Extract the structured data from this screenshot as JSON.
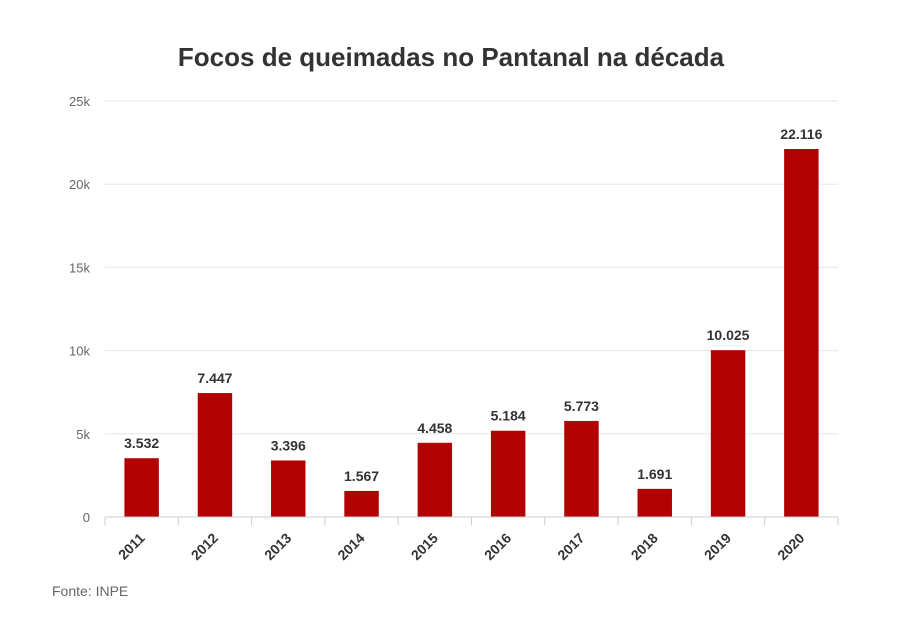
{
  "chart_data": {
    "type": "bar",
    "title": "Focos de queimadas no Pantanal na década",
    "categories": [
      "2011",
      "2012",
      "2013",
      "2014",
      "2015",
      "2016",
      "2017",
      "2018",
      "2019",
      "2020"
    ],
    "values": [
      3532,
      7447,
      3396,
      1567,
      4458,
      5184,
      5773,
      1691,
      10025,
      22116
    ],
    "data_labels": [
      "3.532",
      "7.447",
      "3.396",
      "1.567",
      "4.458",
      "5.184",
      "5.773",
      "1.691",
      "10.025",
      "22.116"
    ],
    "y_ticks": [
      0,
      5000,
      10000,
      15000,
      20000,
      25000
    ],
    "y_tick_labels": [
      "0",
      "5k",
      "10k",
      "15k",
      "20k",
      "25k"
    ],
    "ylim": [
      0,
      25000
    ],
    "xlabel": "",
    "ylabel": "",
    "grid": true,
    "legend": "none",
    "colors": {
      "bar": "#b30000",
      "grid": "#e6e6e6",
      "axis": "#cccccc"
    }
  },
  "source": "Fonte: INPE"
}
